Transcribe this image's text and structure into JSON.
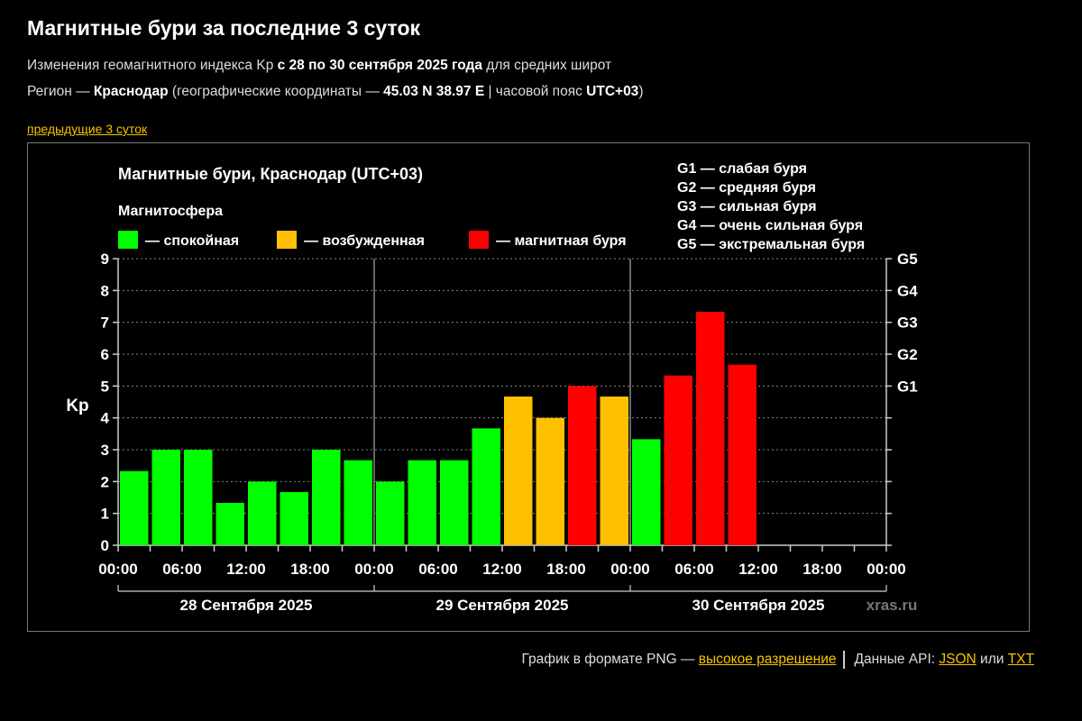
{
  "page": {
    "title": "Магнитные бури за последние 3 суток",
    "line1_pre": "Изменения геомагнитного индекса Kp ",
    "line1_bold": "с 28 по 30 сентября 2025 года",
    "line1_post": " для средних широт",
    "line2_pre": "Регион — ",
    "line2_region": "Краснодар",
    "line2_mid": " (географические координаты — ",
    "line2_coords": "45.03 N 38.97 E",
    "line2_tz_pre": " | часовой пояс ",
    "line2_tz": "UTC+03",
    "line2_post": ")",
    "prev_link": "предыдущие 3 суток"
  },
  "footer": {
    "text1": "График в формате PNG — ",
    "link_hires": "высокое разрешение",
    "text2": "Данные API: ",
    "link_json": "JSON",
    "text3": " или ",
    "link_txt": "TXT"
  },
  "colors": {
    "calm": "#00ff00",
    "excited": "#ffc000",
    "storm": "#ff0000",
    "accent_link": "#f5c400"
  },
  "chart_data": {
    "type": "bar",
    "title": "Магнитные бури, Краснодар (UTC+03)",
    "legend_title": "Магнитосфера",
    "legend": [
      {
        "label": "— спокойная",
        "color": "#00ff00"
      },
      {
        "label": "— возбужденная",
        "color": "#ffc000"
      },
      {
        "label": "— магнитная буря",
        "color": "#ff0000"
      }
    ],
    "g_legend": [
      "G1 — слабая буря",
      "G2 — средняя буря",
      "G3 — сильная буря",
      "G4 — очень сильная буря",
      "G5 — экстремальная буря"
    ],
    "ylabel": "Kp",
    "ylim": [
      0,
      9
    ],
    "yticks": [
      "0",
      "1",
      "2",
      "3",
      "4",
      "5",
      "6",
      "7",
      "8",
      "9"
    ],
    "g_ticks": [
      {
        "kp": 5,
        "label": "G1"
      },
      {
        "kp": 6,
        "label": "G2"
      },
      {
        "kp": 7,
        "label": "G3"
      },
      {
        "kp": 8,
        "label": "G4"
      },
      {
        "kp": 9,
        "label": "G5"
      }
    ],
    "xtick_labels": [
      "00:00",
      "06:00",
      "12:00",
      "18:00",
      "00:00",
      "06:00",
      "12:00",
      "18:00",
      "00:00",
      "06:00",
      "12:00",
      "18:00",
      "00:00"
    ],
    "days": [
      "28 Сентября 2025",
      "29 Сентября 2025",
      "30 Сентября 2025"
    ],
    "interval_hours": 3,
    "values": [
      2.33,
      3.0,
      3.0,
      1.33,
      2.0,
      1.67,
      3.0,
      2.67,
      2.0,
      2.67,
      2.67,
      3.67,
      4.67,
      4.0,
      5.0,
      4.67,
      3.33,
      5.33,
      7.33,
      5.67
    ],
    "watermark": "xras.ru",
    "grid": true
  }
}
